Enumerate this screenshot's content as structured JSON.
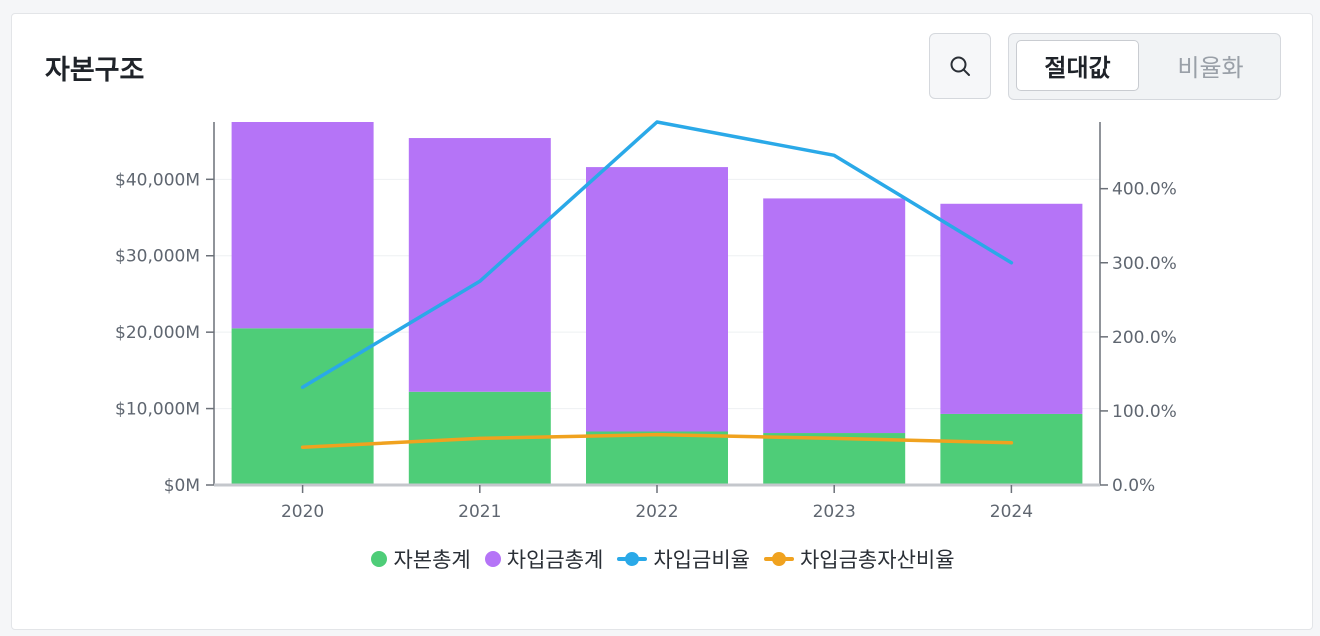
{
  "header": {
    "title": "자본구조",
    "search_icon": "search-icon",
    "toggle": {
      "options": [
        "절대값",
        "비율화"
      ],
      "selected": "절대값"
    }
  },
  "colors": {
    "equity": "#4ecd78",
    "borrowings": "#b574f7",
    "borrowing_ratio": "#2aa9e8",
    "borrowing_to_assets_ratio": "#f0a21f",
    "axis": "#6b7078",
    "grid": "#eef0f2"
  },
  "chart_data": {
    "type": "bar",
    "stacked": true,
    "categories": [
      "2020",
      "2021",
      "2022",
      "2023",
      "2024"
    ],
    "series": [
      {
        "name": "자본총계",
        "type": "bar",
        "axis": "left",
        "values": [
          20500,
          12200,
          7000,
          6800,
          9300
        ]
      },
      {
        "name": "차입금총계",
        "type": "bar",
        "axis": "left",
        "values": [
          27000,
          33200,
          34600,
          30700,
          27500
        ]
      },
      {
        "name": "차입금비율",
        "type": "line",
        "axis": "right",
        "values": [
          132,
          275,
          490,
          445,
          300
        ]
      },
      {
        "name": "차입금총자산비율",
        "type": "line",
        "axis": "right",
        "values": [
          51,
          63,
          68,
          63,
          57
        ]
      }
    ],
    "y_left": {
      "ticks": [
        "$0M",
        "$10,000M",
        "$20,000M",
        "$30,000M",
        "$40,000M"
      ],
      "tick_values": [
        0,
        10000,
        20000,
        30000,
        40000
      ],
      "range": [
        0,
        47500
      ]
    },
    "y_right": {
      "ticks": [
        "0.0%",
        "100.0%",
        "200.0%",
        "300.0%",
        "400.0%"
      ],
      "tick_values": [
        0,
        100,
        200,
        300,
        400
      ],
      "range": [
        0,
        490
      ]
    },
    "grid": true,
    "legend_position": "bottom"
  }
}
